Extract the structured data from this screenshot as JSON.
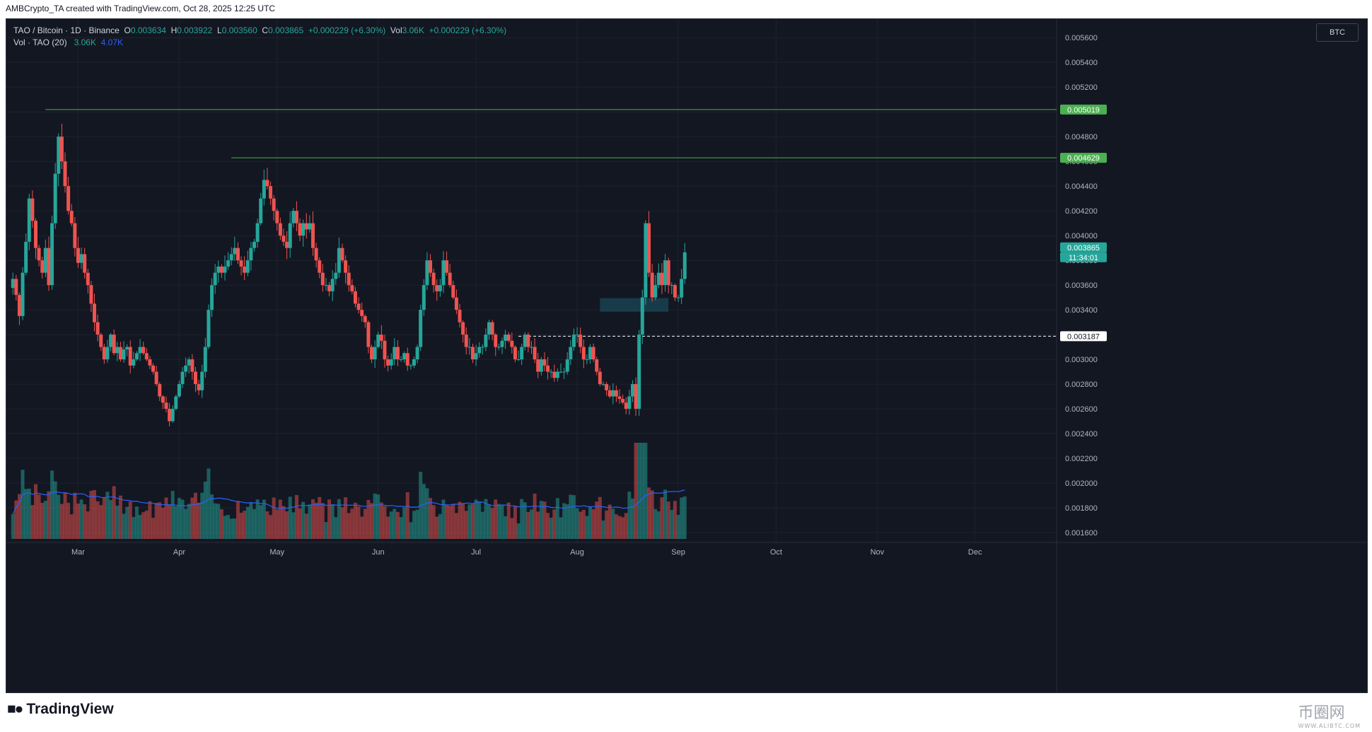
{
  "caption": "AMBCrypto_TA created with TradingView.com, Oct 28, 2025 12:25 UTC",
  "legend": {
    "symbol": "TAO / Bitcoin · 1D · Binance",
    "o_label": "O",
    "o_value": "0.003634",
    "h_label": "H",
    "h_value": "0.003922",
    "l_label": "L",
    "l_value": "0.003560",
    "c_label": "C",
    "c_value": "0.003865",
    "change": "+0.000229 (+6.30%)",
    "vol_label": "Vol",
    "vol_value": "3.06K",
    "vol_change": "+0.000229 (+6.30%)",
    "vol_indicator": "Vol · TAO (20)",
    "vol_current": "3.06K",
    "vol_ma": "4.07K"
  },
  "currency_button": "BTC",
  "brand": "TradingView",
  "watermark": {
    "text": "币圈网",
    "sub": "WWW.ALIBTC.COM"
  },
  "colors": {
    "background": "#131722",
    "up": "#26a69a",
    "down": "#ef5350",
    "resistance": "#4caf50",
    "volume_ma": "#2962ff",
    "zone": "#1e5a6b"
  },
  "chart_data": {
    "type": "candlestick",
    "title": "TAO / Bitcoin · 1D · Binance",
    "ylim": [
      0.00152,
      0.00575
    ],
    "y_ticks": [
      0.0016,
      0.0018,
      0.002,
      0.0022,
      0.0024,
      0.0026,
      0.0028,
      0.003,
      0.0032,
      0.0034,
      0.0036,
      0.0038,
      0.004,
      0.0042,
      0.0044,
      0.0046,
      0.0048,
      0.005,
      0.0052,
      0.0054,
      0.0056
    ],
    "y_tick_labels": [
      "0.001600",
      "0.001800",
      "0.002000",
      "0.002200",
      "0.002400",
      "0.002600",
      "0.002800",
      "0.003000",
      "0.003200",
      "0.003400",
      "0.003600",
      "0.003800",
      "0.004000",
      "0.004200",
      "0.004400",
      "0.004600",
      "0.004800",
      "0.005000",
      "0.005200",
      "0.005400",
      "0.005600"
    ],
    "x_labels": [
      "Mar",
      "Apr",
      "May",
      "Jun",
      "Jul",
      "Aug",
      "Sep",
      "Oct",
      "Nov",
      "Dec"
    ],
    "x_label_days": [
      22,
      53,
      83,
      114,
      144,
      175,
      206,
      236,
      267,
      297
    ],
    "x_range_days": [
      0,
      322
    ],
    "closes": [
      0.00365,
      0.00352,
      0.00335,
      0.0037,
      0.00395,
      0.0043,
      0.00412,
      0.0039,
      0.0038,
      0.0037,
      0.0039,
      0.0036,
      0.0041,
      0.0045,
      0.0048,
      0.0046,
      0.0044,
      0.0042,
      0.0041,
      0.0039,
      0.00378,
      0.00385,
      0.0037,
      0.0036,
      0.00345,
      0.0033,
      0.0032,
      0.0031,
      0.003,
      0.0031,
      0.0032,
      0.00305,
      0.0031,
      0.003,
      0.00308,
      0.0031,
      0.00295,
      0.003,
      0.00305,
      0.0031,
      0.00305,
      0.003,
      0.00295,
      0.0029,
      0.0028,
      0.0027,
      0.00265,
      0.0026,
      0.0025,
      0.0026,
      0.0027,
      0.0028,
      0.0029,
      0.00295,
      0.003,
      0.0029,
      0.0028,
      0.00275,
      0.0029,
      0.0031,
      0.0034,
      0.0036,
      0.0037,
      0.00375,
      0.0037,
      0.00375,
      0.0038,
      0.00385,
      0.0039,
      0.0038,
      0.00375,
      0.0037,
      0.0038,
      0.0039,
      0.00395,
      0.0041,
      0.0043,
      0.00445,
      0.0044,
      0.0043,
      0.0042,
      0.0041,
      0.004,
      0.00395,
      0.0039,
      0.0041,
      0.0042,
      0.0041,
      0.004,
      0.0041,
      0.00405,
      0.0041,
      0.0039,
      0.0038,
      0.0037,
      0.0036,
      0.0036,
      0.00355,
      0.00365,
      0.0037,
      0.0039,
      0.0038,
      0.0037,
      0.0036,
      0.00355,
      0.00345,
      0.0034,
      0.00335,
      0.0033,
      0.0031,
      0.003,
      0.0031,
      0.0032,
      0.00315,
      0.003,
      0.00295,
      0.003,
      0.0031,
      0.003,
      0.003,
      0.00305,
      0.00295,
      0.00295,
      0.003,
      0.0031,
      0.0034,
      0.0036,
      0.0038,
      0.0037,
      0.0036,
      0.00355,
      0.0036,
      0.0038,
      0.0037,
      0.0036,
      0.0035,
      0.0034,
      0.0033,
      0.0032,
      0.0031,
      0.0031,
      0.003,
      0.00305,
      0.0031,
      0.0031,
      0.0032,
      0.0033,
      0.0032,
      0.0031,
      0.0031,
      0.00315,
      0.0032,
      0.00315,
      0.0031,
      0.003,
      0.003,
      0.0031,
      0.0032,
      0.0031,
      0.0031,
      0.003,
      0.0029,
      0.003,
      0.00295,
      0.0029,
      0.0029,
      0.00285,
      0.0029,
      0.0029,
      0.0029,
      0.003,
      0.0031,
      0.0032,
      0.0032,
      0.0031,
      0.003,
      0.003,
      0.0031,
      0.003,
      0.0029,
      0.0028,
      0.0028,
      0.00275,
      0.0027,
      0.00275,
      0.0027,
      0.00268,
      0.00265,
      0.0026,
      0.0027,
      0.0028,
      0.0026,
      0.0032,
      0.0035,
      0.0041,
      0.0037,
      0.0035,
      0.0036,
      0.0037,
      0.0036,
      0.0038,
      0.0036,
      0.0036,
      0.0035,
      0.0035,
      0.00365,
      0.003865
    ],
    "series": [
      {
        "name": "Vol · TAO (20)",
        "kind": "volume"
      }
    ],
    "volume_ma_label": "4.07K",
    "price_tags": [
      {
        "label": "0.005019",
        "value": 0.005019,
        "kind": "resistance"
      },
      {
        "label": "0.004629",
        "value": 0.004629,
        "kind": "resistance"
      },
      {
        "label": "0.003865",
        "value": 0.003865,
        "kind": "last"
      },
      {
        "label": "11:34:01",
        "value": 0.003865,
        "kind": "countdown"
      },
      {
        "label": "0.003187",
        "value": 0.003187,
        "kind": "support"
      }
    ],
    "resistance_lines": [
      {
        "value": 0.005019,
        "from_day": 12
      },
      {
        "value": 0.004629,
        "from_day": 69
      }
    ],
    "support_line": {
      "value": 0.003187,
      "from_day": 157
    },
    "demand_zone": {
      "from_day": 182,
      "to_day": 203,
      "low": 0.003385,
      "high": 0.003495
    }
  }
}
